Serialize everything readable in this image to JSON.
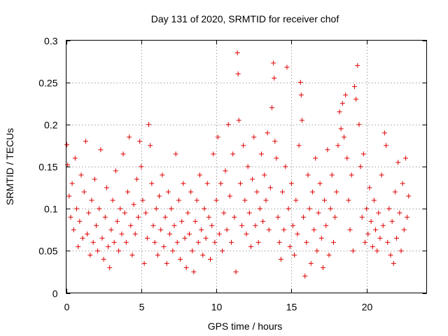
{
  "chart_data": {
    "type": "scatter",
    "title": "Day 131 of 2020, SRMTID for receiver chof",
    "xlabel": "GPS time / hours",
    "ylabel": "SRMTID / TECUs",
    "xlim": [
      0,
      24
    ],
    "ylim": [
      0,
      0.3
    ],
    "xticks": [
      0,
      5,
      10,
      15,
      20
    ],
    "xtick_labels": [
      "0",
      "5",
      "10",
      "15",
      "20"
    ],
    "yticks": [
      0,
      0.05,
      0.1,
      0.15,
      0.2,
      0.25,
      0.3
    ],
    "ytick_labels": [
      "0",
      "0.05",
      "0.1",
      "0.15",
      "0.2",
      "0.25",
      "0.3"
    ],
    "grid": true,
    "marker": "plus",
    "color": "#e00000",
    "x_range_of_data": [
      0,
      22.8
    ],
    "y_range_of_data": [
      0.02,
      0.285
    ],
    "points": [
      [
        0.05,
        0.176
      ],
      [
        0.1,
        0.152
      ],
      [
        0.2,
        0.115
      ],
      [
        0.3,
        0.09
      ],
      [
        0.4,
        0.13
      ],
      [
        0.5,
        0.075
      ],
      [
        0.6,
        0.16
      ],
      [
        0.7,
        0.1
      ],
      [
        0.8,
        0.055
      ],
      [
        0.9,
        0.085
      ],
      [
        1.0,
        0.14
      ],
      [
        1.1,
        0.065
      ],
      [
        1.2,
        0.12
      ],
      [
        1.3,
        0.18
      ],
      [
        1.4,
        0.07
      ],
      [
        1.5,
        0.095
      ],
      [
        1.6,
        0.045
      ],
      [
        1.7,
        0.11
      ],
      [
        1.8,
        0.06
      ],
      [
        1.9,
        0.135
      ],
      [
        2.0,
        0.08
      ],
      [
        2.1,
        0.05
      ],
      [
        2.2,
        0.1
      ],
      [
        2.3,
        0.17
      ],
      [
        2.4,
        0.065
      ],
      [
        2.5,
        0.04
      ],
      [
        2.6,
        0.09
      ],
      [
        2.7,
        0.125
      ],
      [
        2.8,
        0.055
      ],
      [
        2.9,
        0.03
      ],
      [
        3.0,
        0.075
      ],
      [
        3.1,
        0.11
      ],
      [
        3.2,
        0.06
      ],
      [
        3.3,
        0.145
      ],
      [
        3.4,
        0.085
      ],
      [
        3.5,
        0.05
      ],
      [
        3.6,
        0.1
      ],
      [
        3.7,
        0.07
      ],
      [
        3.8,
        0.165
      ],
      [
        3.9,
        0.095
      ],
      [
        4.0,
        0.06
      ],
      [
        4.1,
        0.12
      ],
      [
        4.2,
        0.185
      ],
      [
        4.3,
        0.08
      ],
      [
        4.4,
        0.045
      ],
      [
        4.5,
        0.105
      ],
      [
        4.6,
        0.07
      ],
      [
        4.7,
        0.135
      ],
      [
        4.8,
        0.09
      ],
      [
        4.9,
        0.18
      ],
      [
        5.0,
        0.15
      ],
      [
        5.1,
        0.11
      ],
      [
        5.2,
        0.035
      ],
      [
        5.3,
        0.095
      ],
      [
        5.4,
        0.065
      ],
      [
        5.5,
        0.2
      ],
      [
        5.6,
        0.175
      ],
      [
        5.7,
        0.13
      ],
      [
        5.8,
        0.08
      ],
      [
        5.9,
        0.06
      ],
      [
        6.0,
        0.1
      ],
      [
        6.1,
        0.045
      ],
      [
        6.2,
        0.115
      ],
      [
        6.3,
        0.075
      ],
      [
        6.4,
        0.14
      ],
      [
        6.5,
        0.055
      ],
      [
        6.6,
        0.09
      ],
      [
        6.7,
        0.035
      ],
      [
        6.8,
        0.12
      ],
      [
        6.9,
        0.07
      ],
      [
        7.0,
        0.1
      ],
      [
        7.1,
        0.05
      ],
      [
        7.2,
        0.08
      ],
      [
        7.3,
        0.165
      ],
      [
        7.4,
        0.06
      ],
      [
        7.5,
        0.11
      ],
      [
        7.6,
        0.04
      ],
      [
        7.7,
        0.085
      ],
      [
        7.8,
        0.13
      ],
      [
        7.9,
        0.065
      ],
      [
        8.0,
        0.03
      ],
      [
        8.1,
        0.095
      ],
      [
        8.2,
        0.07
      ],
      [
        8.3,
        0.12
      ],
      [
        8.4,
        0.05
      ],
      [
        8.5,
        0.025
      ],
      [
        8.6,
        0.085
      ],
      [
        8.7,
        0.11
      ],
      [
        8.8,
        0.06
      ],
      [
        8.9,
        0.14
      ],
      [
        9.0,
        0.075
      ],
      [
        9.1,
        0.045
      ],
      [
        9.2,
        0.1
      ],
      [
        9.3,
        0.065
      ],
      [
        9.4,
        0.13
      ],
      [
        9.5,
        0.09
      ],
      [
        9.6,
        0.04
      ],
      [
        9.7,
        0.08
      ],
      [
        9.8,
        0.165
      ],
      [
        9.9,
        0.06
      ],
      [
        10.0,
        0.11
      ],
      [
        10.1,
        0.185
      ],
      [
        10.2,
        0.07
      ],
      [
        10.3,
        0.13
      ],
      [
        10.4,
        0.05
      ],
      [
        10.5,
        0.095
      ],
      [
        10.6,
        0.145
      ],
      [
        10.7,
        0.075
      ],
      [
        10.8,
        0.2
      ],
      [
        10.9,
        0.115
      ],
      [
        11.0,
        0.06
      ],
      [
        11.1,
        0.165
      ],
      [
        11.2,
        0.09
      ],
      [
        11.3,
        0.025
      ],
      [
        11.4,
        0.285
      ],
      [
        11.45,
        0.26
      ],
      [
        11.5,
        0.205
      ],
      [
        11.6,
        0.13
      ],
      [
        11.7,
        0.08
      ],
      [
        11.8,
        0.175
      ],
      [
        11.9,
        0.11
      ],
      [
        12.0,
        0.07
      ],
      [
        12.1,
        0.15
      ],
      [
        12.2,
        0.095
      ],
      [
        12.3,
        0.055
      ],
      [
        12.4,
        0.135
      ],
      [
        12.5,
        0.185
      ],
      [
        12.6,
        0.08
      ],
      [
        12.7,
        0.12
      ],
      [
        12.8,
        0.06
      ],
      [
        12.9,
        0.1
      ],
      [
        13.0,
        0.165
      ],
      [
        13.1,
        0.085
      ],
      [
        13.2,
        0.14
      ],
      [
        13.3,
        0.11
      ],
      [
        13.4,
        0.19
      ],
      [
        13.5,
        0.075
      ],
      [
        13.6,
        0.125
      ],
      [
        13.7,
        0.22
      ],
      [
        13.8,
        0.273
      ],
      [
        13.85,
        0.255
      ],
      [
        13.9,
        0.18
      ],
      [
        14.0,
        0.16
      ],
      [
        14.1,
        0.09
      ],
      [
        14.2,
        0.06
      ],
      [
        14.3,
        0.04
      ],
      [
        14.4,
        0.12
      ],
      [
        14.5,
        0.075
      ],
      [
        14.6,
        0.15
      ],
      [
        14.7,
        0.268
      ],
      [
        14.8,
        0.1
      ],
      [
        14.9,
        0.055
      ],
      [
        15.0,
        0.13
      ],
      [
        15.1,
        0.08
      ],
      [
        15.2,
        0.045
      ],
      [
        15.3,
        0.11
      ],
      [
        15.4,
        0.07
      ],
      [
        15.5,
        0.175
      ],
      [
        15.6,
        0.25
      ],
      [
        15.65,
        0.235
      ],
      [
        15.7,
        0.205
      ],
      [
        15.8,
        0.09
      ],
      [
        15.9,
        0.02
      ],
      [
        16.0,
        0.06
      ],
      [
        16.1,
        0.14
      ],
      [
        16.2,
        0.1
      ],
      [
        16.3,
        0.035
      ],
      [
        16.4,
        0.12
      ],
      [
        16.5,
        0.075
      ],
      [
        16.6,
        0.16
      ],
      [
        16.7,
        0.05
      ],
      [
        16.8,
        0.095
      ],
      [
        16.9,
        0.13
      ],
      [
        17.0,
        0.065
      ],
      [
        17.1,
        0.03
      ],
      [
        17.2,
        0.11
      ],
      [
        17.3,
        0.08
      ],
      [
        17.4,
        0.17
      ],
      [
        17.5,
        0.045
      ],
      [
        17.6,
        0.1
      ],
      [
        17.7,
        0.14
      ],
      [
        17.8,
        0.06
      ],
      [
        17.9,
        0.09
      ],
      [
        18.0,
        0.12
      ],
      [
        18.1,
        0.175
      ],
      [
        18.2,
        0.215
      ],
      [
        18.3,
        0.195
      ],
      [
        18.4,
        0.225
      ],
      [
        18.5,
        0.185
      ],
      [
        18.6,
        0.235
      ],
      [
        18.7,
        0.16
      ],
      [
        18.8,
        0.11
      ],
      [
        18.9,
        0.075
      ],
      [
        19.0,
        0.14
      ],
      [
        19.1,
        0.05
      ],
      [
        19.2,
        0.245
      ],
      [
        19.3,
        0.23
      ],
      [
        19.4,
        0.27
      ],
      [
        19.5,
        0.2
      ],
      [
        19.6,
        0.15
      ],
      [
        19.7,
        0.09
      ],
      [
        19.8,
        0.165
      ],
      [
        19.9,
        0.06
      ],
      [
        20.0,
        0.1
      ],
      [
        20.1,
        0.07
      ],
      [
        20.2,
        0.125
      ],
      [
        20.3,
        0.085
      ],
      [
        20.4,
        0.055
      ],
      [
        20.5,
        0.11
      ],
      [
        20.6,
        0.075
      ],
      [
        20.7,
        0.05
      ],
      [
        20.8,
        0.095
      ],
      [
        20.9,
        0.065
      ],
      [
        21.0,
        0.14
      ],
      [
        21.1,
        0.08
      ],
      [
        21.2,
        0.19
      ],
      [
        21.3,
        0.175
      ],
      [
        21.4,
        0.06
      ],
      [
        21.5,
        0.1
      ],
      [
        21.6,
        0.045
      ],
      [
        21.7,
        0.085
      ],
      [
        21.8,
        0.035
      ],
      [
        21.9,
        0.12
      ],
      [
        22.0,
        0.065
      ],
      [
        22.1,
        0.155
      ],
      [
        22.2,
        0.095
      ],
      [
        22.3,
        0.05
      ],
      [
        22.4,
        0.13
      ],
      [
        22.5,
        0.075
      ],
      [
        22.6,
        0.16
      ],
      [
        22.7,
        0.09
      ],
      [
        22.8,
        0.115
      ]
    ]
  }
}
